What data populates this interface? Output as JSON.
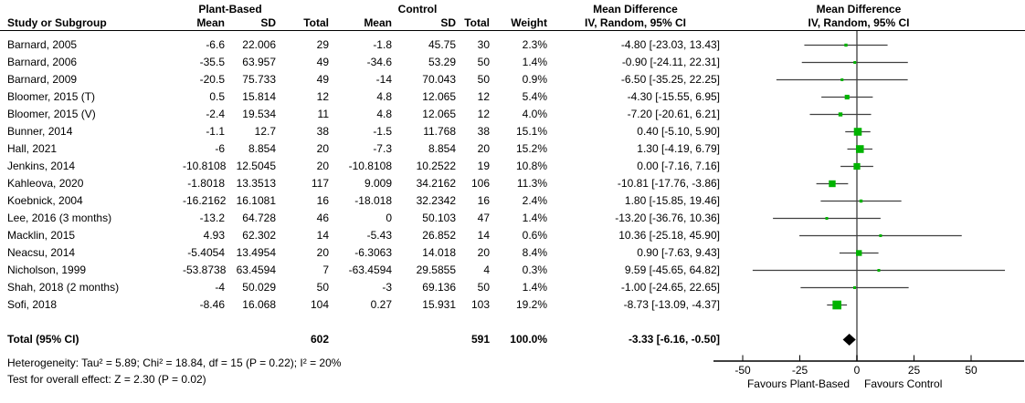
{
  "header": {
    "group_treatment": "Plant-Based",
    "group_control": "Control",
    "md_text_col": "Mean Difference",
    "md_plot_col": "Mean Difference",
    "study_col": "Study or Subgroup",
    "mean_col_t": "Mean",
    "sd_col_t": "SD",
    "total_col_t": "Total",
    "mean_col_c": "Mean",
    "sd_col_c": "SD",
    "total_col_c": "Total",
    "weight_col": "Weight",
    "iv_text_col": "IV, Random, 95% CI",
    "iv_plot_col": "IV, Random, 95% CI"
  },
  "footer": {
    "heterogeneity": "Heterogeneity: Tau² = 5.89; Chi² = 18.84, df = 15 (P = 0.22); I² = 20%",
    "overall_effect": "Test for overall effect: Z = 2.30 (P = 0.02)"
  },
  "chart_data": {
    "type": "scatter",
    "subtype": "forest-plot",
    "title": "Mean Difference, IV, Random, 95% CI",
    "xlim": [
      -63,
      73
    ],
    "x_ticks": [
      -50,
      -25,
      0,
      25,
      50
    ],
    "x_axis_labels": {
      "left": "Favours Plant-Based",
      "right": "Favours Control"
    },
    "marker_color": "#00b300",
    "ci_line_color": "#404040",
    "zero_line_color": "#808080",
    "axis_color": "#000000",
    "diamond_color": "#000000",
    "studies": [
      {
        "name": "Barnard, 2005",
        "t_mean": "-6.6",
        "t_sd": "22.006",
        "t_total": "29",
        "c_mean": "-1.8",
        "c_sd": "45.75",
        "c_total": "30",
        "weight": "2.3%",
        "ci_text": "-4.80 [-23.03, 13.43]",
        "md": -4.8,
        "lo": -23.03,
        "hi": 13.43,
        "w": 2.3
      },
      {
        "name": "Barnard, 2006",
        "t_mean": "-35.5",
        "t_sd": "63.957",
        "t_total": "49",
        "c_mean": "-34.6",
        "c_sd": "53.29",
        "c_total": "50",
        "weight": "1.4%",
        "ci_text": "-0.90 [-24.11, 22.31]",
        "md": -0.9,
        "lo": -24.11,
        "hi": 22.31,
        "w": 1.4
      },
      {
        "name": "Barnard, 2009",
        "t_mean": "-20.5",
        "t_sd": "75.733",
        "t_total": "49",
        "c_mean": "-14",
        "c_sd": "70.043",
        "c_total": "50",
        "weight": "0.9%",
        "ci_text": "-6.50 [-35.25, 22.25]",
        "md": -6.5,
        "lo": -35.25,
        "hi": 22.25,
        "w": 0.9
      },
      {
        "name": "Bloomer, 2015 (T)",
        "t_mean": "0.5",
        "t_sd": "15.814",
        "t_total": "12",
        "c_mean": "4.8",
        "c_sd": "12.065",
        "c_total": "12",
        "weight": "5.4%",
        "ci_text": "-4.30 [-15.55, 6.95]",
        "md": -4.3,
        "lo": -15.55,
        "hi": 6.95,
        "w": 5.4
      },
      {
        "name": "Bloomer, 2015 (V)",
        "t_mean": "-2.4",
        "t_sd": "19.534",
        "t_total": "11",
        "c_mean": "4.8",
        "c_sd": "12.065",
        "c_total": "12",
        "weight": "4.0%",
        "ci_text": "-7.20 [-20.61, 6.21]",
        "md": -7.2,
        "lo": -20.61,
        "hi": 6.21,
        "w": 4.0
      },
      {
        "name": "Bunner, 2014",
        "t_mean": "-1.1",
        "t_sd": "12.7",
        "t_total": "38",
        "c_mean": "-1.5",
        "c_sd": "11.768",
        "c_total": "38",
        "weight": "15.1%",
        "ci_text": "0.40 [-5.10, 5.90]",
        "md": 0.4,
        "lo": -5.1,
        "hi": 5.9,
        "w": 15.1
      },
      {
        "name": "Hall, 2021",
        "t_mean": "-6",
        "t_sd": "8.854",
        "t_total": "20",
        "c_mean": "-7.3",
        "c_sd": "8.854",
        "c_total": "20",
        "weight": "15.2%",
        "ci_text": "1.30 [-4.19, 6.79]",
        "md": 1.3,
        "lo": -4.19,
        "hi": 6.79,
        "w": 15.2
      },
      {
        "name": "Jenkins, 2014",
        "t_mean": "-10.8108",
        "t_sd": "12.5045",
        "t_total": "20",
        "c_mean": "-10.8108",
        "c_sd": "10.2522",
        "c_total": "19",
        "weight": "10.8%",
        "ci_text": "0.00 [-7.16, 7.16]",
        "md": 0.0,
        "lo": -7.16,
        "hi": 7.16,
        "w": 10.8
      },
      {
        "name": "Kahleova, 2020",
        "t_mean": "-1.8018",
        "t_sd": "13.3513",
        "t_total": "117",
        "c_mean": "9.009",
        "c_sd": "34.2162",
        "c_total": "106",
        "weight": "11.3%",
        "ci_text": "-10.81 [-17.76, -3.86]",
        "md": -10.81,
        "lo": -17.76,
        "hi": -3.86,
        "w": 11.3
      },
      {
        "name": "Koebnick, 2004",
        "t_mean": "-16.2162",
        "t_sd": "16.1081",
        "t_total": "16",
        "c_mean": "-18.018",
        "c_sd": "32.2342",
        "c_total": "16",
        "weight": "2.4%",
        "ci_text": "1.80 [-15.85, 19.46]",
        "md": 1.8,
        "lo": -15.85,
        "hi": 19.46,
        "w": 2.4
      },
      {
        "name": "Lee, 2016 (3 months)",
        "t_mean": "-13.2",
        "t_sd": "64.728",
        "t_total": "46",
        "c_mean": "0",
        "c_sd": "50.103",
        "c_total": "47",
        "weight": "1.4%",
        "ci_text": "-13.20 [-36.76, 10.36]",
        "md": -13.2,
        "lo": -36.76,
        "hi": 10.36,
        "w": 1.4
      },
      {
        "name": "Macklin, 2015",
        "t_mean": "4.93",
        "t_sd": "62.302",
        "t_total": "14",
        "c_mean": "-5.43",
        "c_sd": "26.852",
        "c_total": "14",
        "weight": "0.6%",
        "ci_text": "10.36 [-25.18, 45.90]",
        "md": 10.36,
        "lo": -25.18,
        "hi": 45.9,
        "w": 0.6
      },
      {
        "name": "Neacsu, 2014",
        "t_mean": "-5.4054",
        "t_sd": "13.4954",
        "t_total": "20",
        "c_mean": "-6.3063",
        "c_sd": "14.018",
        "c_total": "20",
        "weight": "8.4%",
        "ci_text": "0.90 [-7.63, 9.43]",
        "md": 0.9,
        "lo": -7.63,
        "hi": 9.43,
        "w": 8.4
      },
      {
        "name": "Nicholson, 1999",
        "t_mean": "-53.8738",
        "t_sd": "63.4594",
        "t_total": "7",
        "c_mean": "-63.4594",
        "c_sd": "29.5855",
        "c_total": "4",
        "weight": "0.3%",
        "ci_text": "9.59 [-45.65, 64.82]",
        "md": 9.59,
        "lo": -45.65,
        "hi": 64.82,
        "w": 0.3
      },
      {
        "name": "Shah, 2018 (2 months)",
        "t_mean": "-4",
        "t_sd": "50.029",
        "t_total": "50",
        "c_mean": "-3",
        "c_sd": "69.136",
        "c_total": "50",
        "weight": "1.4%",
        "ci_text": "-1.00 [-24.65, 22.65]",
        "md": -1.0,
        "lo": -24.65,
        "hi": 22.65,
        "w": 1.4
      },
      {
        "name": "Sofi, 2018",
        "t_mean": "-8.46",
        "t_sd": "16.068",
        "t_total": "104",
        "c_mean": "0.27",
        "c_sd": "15.931",
        "c_total": "103",
        "weight": "19.2%",
        "ci_text": "-8.73 [-13.09, -4.37]",
        "md": -8.73,
        "lo": -13.09,
        "hi": -4.37,
        "w": 19.2
      }
    ],
    "total": {
      "label": "Total (95% CI)",
      "t_total": "602",
      "c_total": "591",
      "weight": "100.0%",
      "ci_text": "-3.33 [-6.16, -0.50]",
      "md": -3.33,
      "lo": -6.16,
      "hi": -0.5
    }
  }
}
